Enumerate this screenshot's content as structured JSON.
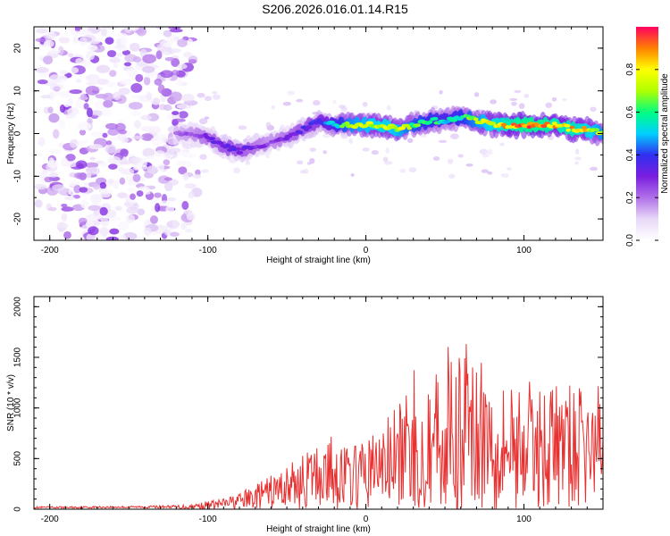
{
  "title": "S206.2026.016.01.14.R15",
  "chart_data": [
    {
      "type": "heatmap",
      "title": "S206.2026.016.01.14.R15",
      "xlabel": "Height of straight line (km)",
      "ylabel": "Frequency (Hz)",
      "xlim": [
        -210,
        150
      ],
      "ylim": [
        -25,
        25
      ],
      "xticks": [
        -200,
        -100,
        0,
        100
      ],
      "yticks": [
        -20,
        -10,
        0,
        10,
        20
      ],
      "colorbar": {
        "label": "Normalized spectral amplitude",
        "range": [
          0,
          1
        ],
        "ticks": [
          0.0,
          0.2,
          0.4,
          0.6,
          0.8
        ],
        "tick_labels": [
          "0.0",
          "0.2",
          "0.4",
          "0.6",
          "0.8"
        ],
        "colormap": [
          "#ffffff",
          "#e8d8f8",
          "#b070e8",
          "#7a1ee0",
          "#3030f0",
          "#00d0ff",
          "#00ff80",
          "#b0ff00",
          "#ffff00",
          "#ff8000",
          "#ff0060"
        ]
      },
      "ridge": {
        "x": [
          -120,
          -110,
          -100,
          -90,
          -80,
          -70,
          -60,
          -50,
          -40,
          -30,
          -20,
          -10,
          0,
          10,
          20,
          30,
          40,
          50,
          60,
          70,
          80,
          90,
          100,
          110,
          120,
          130,
          140,
          150
        ],
        "freq": [
          0,
          0,
          -1,
          -3,
          -4,
          -3,
          -2,
          -1,
          1,
          3,
          2,
          2,
          2,
          2,
          1,
          2,
          3,
          3,
          4,
          3,
          2,
          2,
          2,
          2,
          2,
          1,
          1,
          0
        ],
        "amplitude": [
          0.2,
          0.25,
          0.3,
          0.35,
          0.35,
          0.3,
          0.25,
          0.3,
          0.35,
          0.4,
          0.55,
          0.7,
          0.75,
          0.8,
          0.75,
          0.65,
          0.6,
          0.55,
          0.6,
          0.7,
          0.8,
          0.85,
          0.9,
          0.9,
          0.85,
          0.85,
          0.8,
          0.7
        ]
      },
      "noise_region": {
        "x_range": [
          -210,
          -115
        ],
        "freq_range": [
          -25,
          25
        ],
        "amplitude_range": [
          0.02,
          0.15
        ]
      }
    },
    {
      "type": "line",
      "xlabel": "Height of straight line (km)",
      "ylabel": "SNR (10 * v/v)",
      "xlim": [
        -210,
        150
      ],
      "ylim": [
        0,
        2100
      ],
      "xticks": [
        -200,
        -100,
        0,
        100
      ],
      "yticks": [
        0,
        500,
        1000,
        1500,
        2000
      ],
      "series": [
        {
          "name": "SNR",
          "color": "#e83030",
          "x": [
            -210,
            -180,
            -150,
            -120,
            -110,
            -100,
            -90,
            -80,
            -70,
            -60,
            -50,
            -40,
            -30,
            -20,
            -10,
            0,
            10,
            20,
            30,
            40,
            50,
            60,
            65,
            70,
            80,
            90,
            100,
            110,
            120,
            130,
            140,
            150
          ],
          "y": [
            20,
            22,
            25,
            30,
            40,
            60,
            80,
            120,
            180,
            250,
            330,
            400,
            500,
            550,
            450,
            520,
            650,
            750,
            900,
            1000,
            1050,
            1150,
            1250,
            1100,
            1050,
            950,
            950,
            900,
            950,
            900,
            880,
            920
          ]
        }
      ]
    }
  ]
}
